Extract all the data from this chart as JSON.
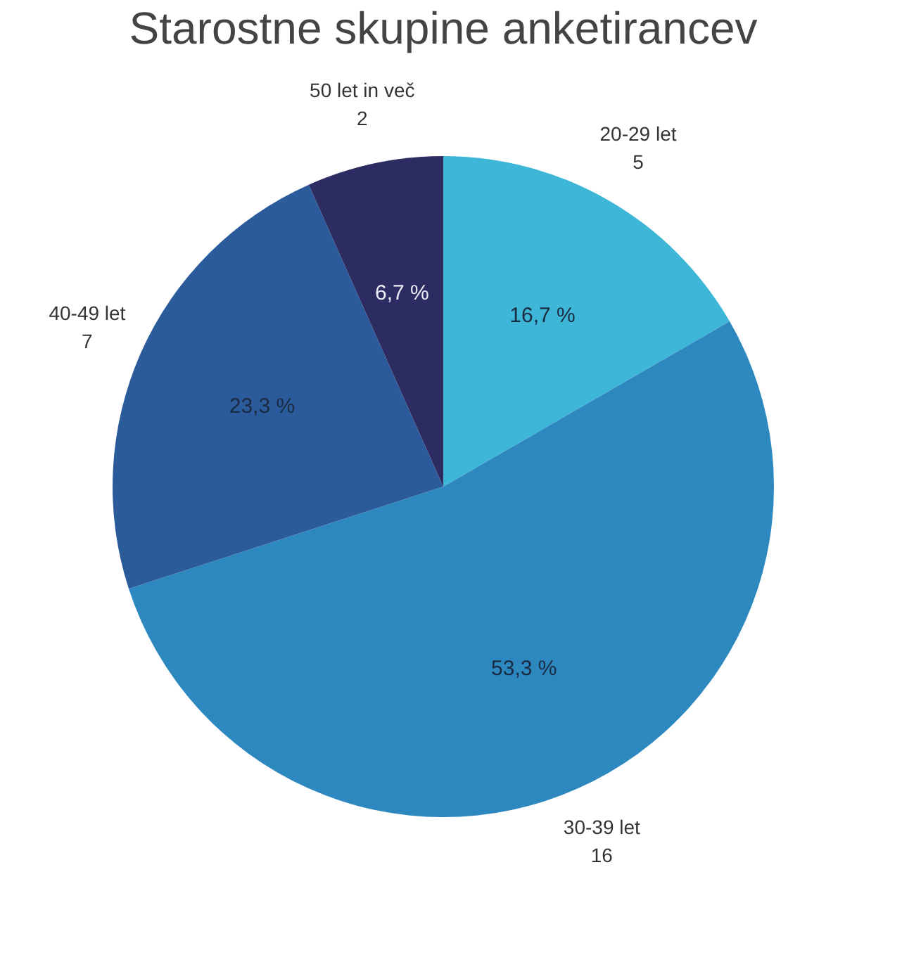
{
  "chart_data": {
    "type": "pie",
    "title": "Starostne skupine anketirancev",
    "categories": [
      "20-29 let",
      "30-39 let",
      "40-49 let",
      "50 let in več"
    ],
    "values": [
      5,
      16,
      7,
      2
    ],
    "colors": [
      "#3db6d8",
      "#2d88c0",
      "#2b5b9b",
      "#2d2c62"
    ],
    "value_labels": [
      "5",
      "16",
      "7",
      "2"
    ],
    "annotations": [
      "16,7 %",
      "53,3 %",
      "23,3 %",
      "6,7 %"
    ],
    "legend": false
  }
}
